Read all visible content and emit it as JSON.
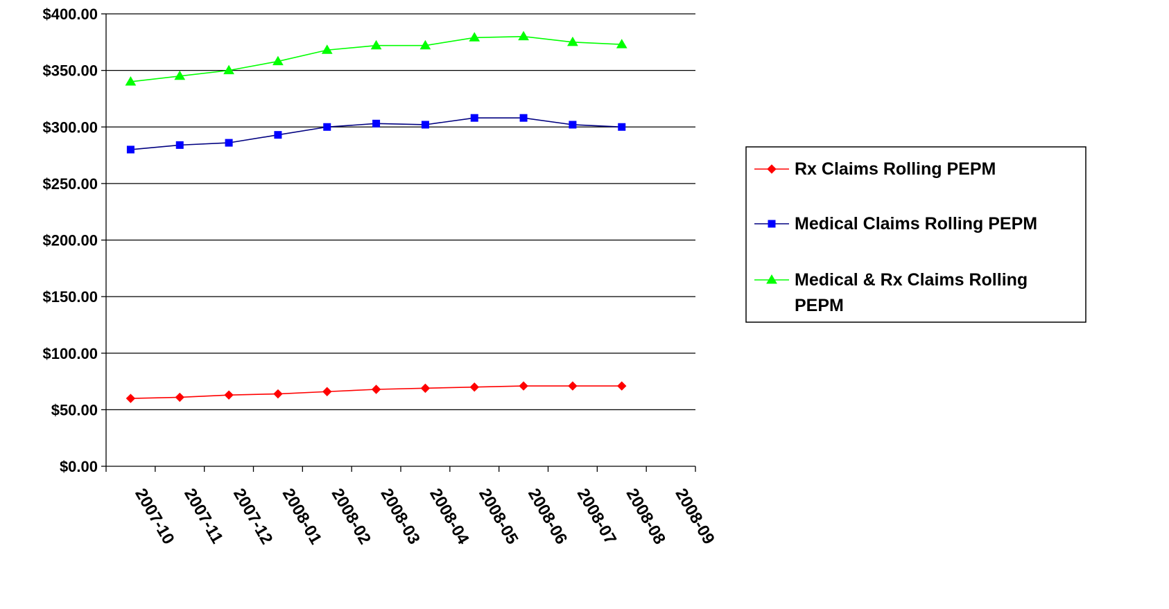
{
  "chart_data": {
    "type": "line",
    "title": "",
    "xlabel": "",
    "ylabel": "",
    "categories": [
      "2007-10",
      "2007-11",
      "2007-12",
      "2008-01",
      "2008-02",
      "2008-03",
      "2008-04",
      "2008-05",
      "2008-06",
      "2008-07",
      "2008-08",
      "2008-09"
    ],
    "ylim": [
      0,
      400
    ],
    "yticks": [
      0,
      50,
      100,
      150,
      200,
      250,
      300,
      350,
      400
    ],
    "ytick_labels": [
      "$0.00",
      "$50.00",
      "$100.00",
      "$150.00",
      "$200.00",
      "$250.00",
      "$300.00",
      "$350.00",
      "$400.00"
    ],
    "grid": true,
    "legend_position": "right",
    "series": [
      {
        "name": "Rx Claims Rolling PEPM",
        "color": "#ff0000",
        "marker": "diamond",
        "values": [
          60,
          61,
          63,
          64,
          66,
          68,
          69,
          70,
          71,
          71,
          71,
          null
        ]
      },
      {
        "name": "Medical Claims Rolling PEPM",
        "color": "#0000ff",
        "line_color": "#000080",
        "marker": "square",
        "values": [
          280,
          284,
          286,
          293,
          300,
          303,
          302,
          308,
          308,
          302,
          300,
          null
        ]
      },
      {
        "name": "Medical & Rx Claims Rolling PEPM",
        "color": "#00ff00",
        "marker": "triangle",
        "values": [
          340,
          345,
          350,
          358,
          368,
          372,
          372,
          379,
          380,
          375,
          373,
          null
        ]
      }
    ]
  }
}
